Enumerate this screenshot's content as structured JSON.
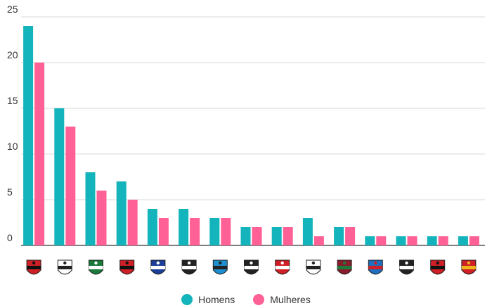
{
  "chart_data": {
    "type": "bar",
    "categories": [
      "flamengo",
      "corinthians",
      "palmeiras",
      "sao-paulo",
      "cruzeiro",
      "vasco",
      "gremio",
      "atletico-mineiro",
      "internacional",
      "santos",
      "fluminense",
      "bahia",
      "botafogo",
      "vitoria",
      "sport"
    ],
    "series": [
      {
        "name": "Homens",
        "color": "#14b4bc",
        "values": [
          24,
          15,
          8,
          7,
          4,
          4,
          3,
          2,
          2,
          3,
          2,
          1,
          1,
          1,
          1
        ]
      },
      {
        "name": "Mulheres",
        "color": "#ff6196",
        "values": [
          20,
          13,
          6,
          5,
          3,
          3,
          3,
          2,
          2,
          1,
          2,
          1,
          1,
          1,
          1
        ]
      }
    ],
    "yticks": [
      "0",
      "5",
      "10",
      "15",
      "20",
      "25"
    ],
    "ylim": [
      0,
      25
    ],
    "grid": true,
    "legend_position": "bottom-center",
    "crests": [
      {
        "name": "flamengo-crest-icon",
        "c1": "#d01f26",
        "c2": "#111111"
      },
      {
        "name": "corinthians-crest-icon",
        "c1": "#ffffff",
        "c2": "#222222"
      },
      {
        "name": "palmeiras-crest-icon",
        "c1": "#1a7a3a",
        "c2": "#ffffff"
      },
      {
        "name": "sao-paulo-crest-icon",
        "c1": "#d01f26",
        "c2": "#111111"
      },
      {
        "name": "cruzeiro-crest-icon",
        "c1": "#1b3f99",
        "c2": "#ffffff"
      },
      {
        "name": "vasco-crest-icon",
        "c1": "#222222",
        "c2": "#ffffff"
      },
      {
        "name": "gremio-crest-icon",
        "c1": "#1e8fd0",
        "c2": "#222222"
      },
      {
        "name": "atletico-mineiro-crest-icon",
        "c1": "#222222",
        "c2": "#ffffff"
      },
      {
        "name": "internacional-crest-icon",
        "c1": "#d01f26",
        "c2": "#ffffff"
      },
      {
        "name": "santos-crest-icon",
        "c1": "#ffffff",
        "c2": "#222222"
      },
      {
        "name": "fluminense-crest-icon",
        "c1": "#8a1c2c",
        "c2": "#1e7a3a"
      },
      {
        "name": "bahia-crest-icon",
        "c1": "#1e6fc0",
        "c2": "#d01f26"
      },
      {
        "name": "botafogo-crest-icon",
        "c1": "#222222",
        "c2": "#ffffff"
      },
      {
        "name": "vitoria-crest-icon",
        "c1": "#d01f26",
        "c2": "#111111"
      },
      {
        "name": "sport-crest-icon",
        "c1": "#d01f26",
        "c2": "#f0b41c"
      }
    ]
  }
}
